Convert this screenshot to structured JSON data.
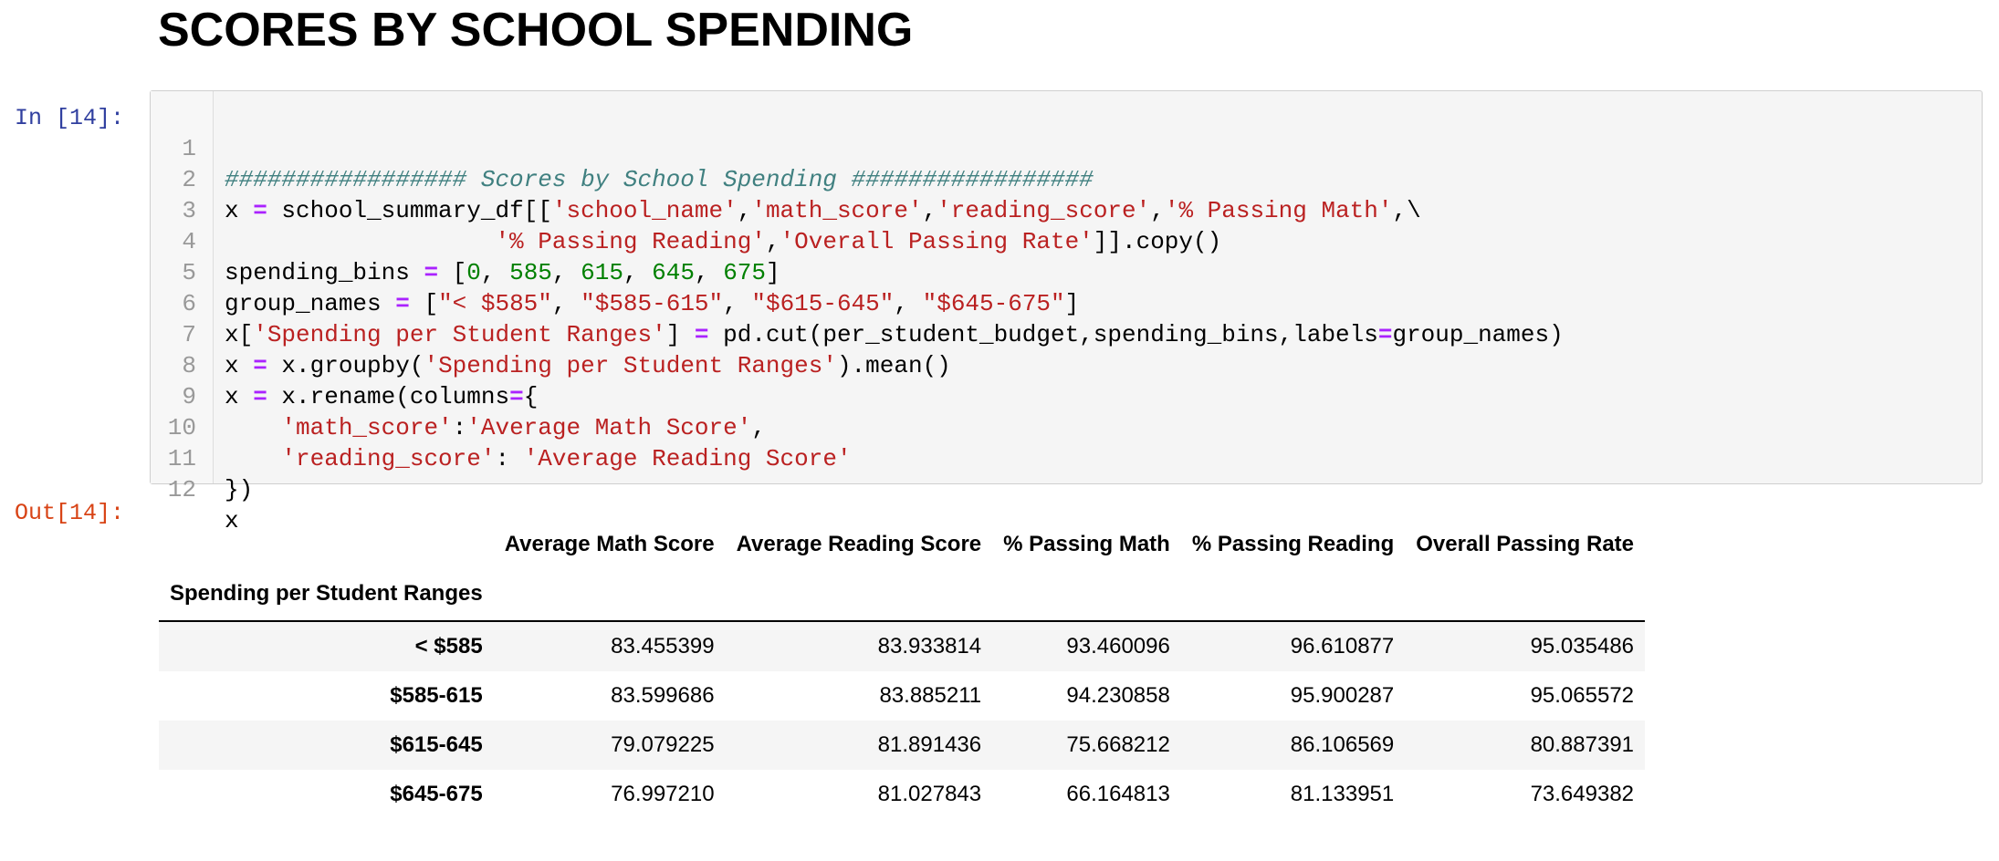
{
  "page": {
    "heading": "SCORES BY SCHOOL SPENDING"
  },
  "input_cell": {
    "prompt": "In [14]:",
    "lines": [
      {
        "n": "1"
      },
      {
        "n": "2"
      },
      {
        "n": "3"
      },
      {
        "n": "4"
      },
      {
        "n": "5"
      },
      {
        "n": "6"
      },
      {
        "n": "7"
      },
      {
        "n": "8"
      },
      {
        "n": "9"
      },
      {
        "n": "10"
      },
      {
        "n": "11"
      },
      {
        "n": "12"
      }
    ],
    "tokens": {
      "l1_comment": "################# Scores by School Spending #################",
      "l2_a": "x ",
      "l2_eq": "=",
      "l2_b": " school_summary_df[[",
      "l2_s1": "'school_name'",
      "l2_c1": ",",
      "l2_s2": "'math_score'",
      "l2_c2": ",",
      "l2_s3": "'reading_score'",
      "l2_c3": ",",
      "l2_s4": "'% Passing Math'",
      "l2_end": ",\\",
      "l3_pad": "                   ",
      "l3_s1": "'% Passing Reading'",
      "l3_c1": ",",
      "l3_s2": "'Overall Passing Rate'",
      "l3_end": "]].copy()",
      "l4_a": "spending_bins ",
      "l4_eq": "=",
      "l4_b": " [",
      "l4_n1": "0",
      "l4_c1": ", ",
      "l4_n2": "585",
      "l4_c2": ", ",
      "l4_n3": "615",
      "l4_c3": ", ",
      "l4_n4": "645",
      "l4_c4": ", ",
      "l4_n5": "675",
      "l4_end": "]",
      "l5_a": "group_names ",
      "l5_eq": "=",
      "l5_b": " [",
      "l5_s1": "\"< $585\"",
      "l5_c1": ", ",
      "l5_s2": "\"$585-615\"",
      "l5_c2": ", ",
      "l5_s3": "\"$615-645\"",
      "l5_c3": ", ",
      "l5_s4": "\"$645-675\"",
      "l5_end": "]",
      "l6_a": "x[",
      "l6_s1": "'Spending per Student Ranges'",
      "l6_b": "] ",
      "l6_eq": "=",
      "l6_c": " pd.cut(per_student_budget,spending_bins,labels",
      "l6_eq2": "=",
      "l6_d": "group_names)",
      "l7_a": "x ",
      "l7_eq": "=",
      "l7_b": " x.groupby(",
      "l7_s1": "'Spending per Student Ranges'",
      "l7_end": ").mean()",
      "l8_a": "x ",
      "l8_eq": "=",
      "l8_b": " x.rename(columns",
      "l8_eq2": "=",
      "l8_end": "{",
      "l9_pad": "    ",
      "l9_s1": "'math_score'",
      "l9_c": ":",
      "l9_s2": "'Average Math Score'",
      "l9_end": ",",
      "l10_pad": "    ",
      "l10_s1": "'reading_score'",
      "l10_c": ": ",
      "l10_s2": "'Average Reading Score'",
      "l11": "})",
      "l12": "x"
    }
  },
  "output_cell": {
    "prompt": "Out[14]:",
    "index_name": "Spending per Student Ranges",
    "columns": [
      "Average Math Score",
      "Average Reading Score",
      "% Passing Math",
      "% Passing Reading",
      "Overall Passing Rate"
    ],
    "rows": [
      {
        "index": "< $585",
        "values": [
          "83.455399",
          "83.933814",
          "93.460096",
          "96.610877",
          "95.035486"
        ]
      },
      {
        "index": "$585-615",
        "values": [
          "83.599686",
          "83.885211",
          "94.230858",
          "95.900287",
          "95.065572"
        ]
      },
      {
        "index": "$615-645",
        "values": [
          "79.079225",
          "81.891436",
          "75.668212",
          "86.106569",
          "80.887391"
        ]
      },
      {
        "index": "$645-675",
        "values": [
          "76.997210",
          "81.027843",
          "66.164813",
          "81.133951",
          "73.649382"
        ]
      }
    ]
  }
}
